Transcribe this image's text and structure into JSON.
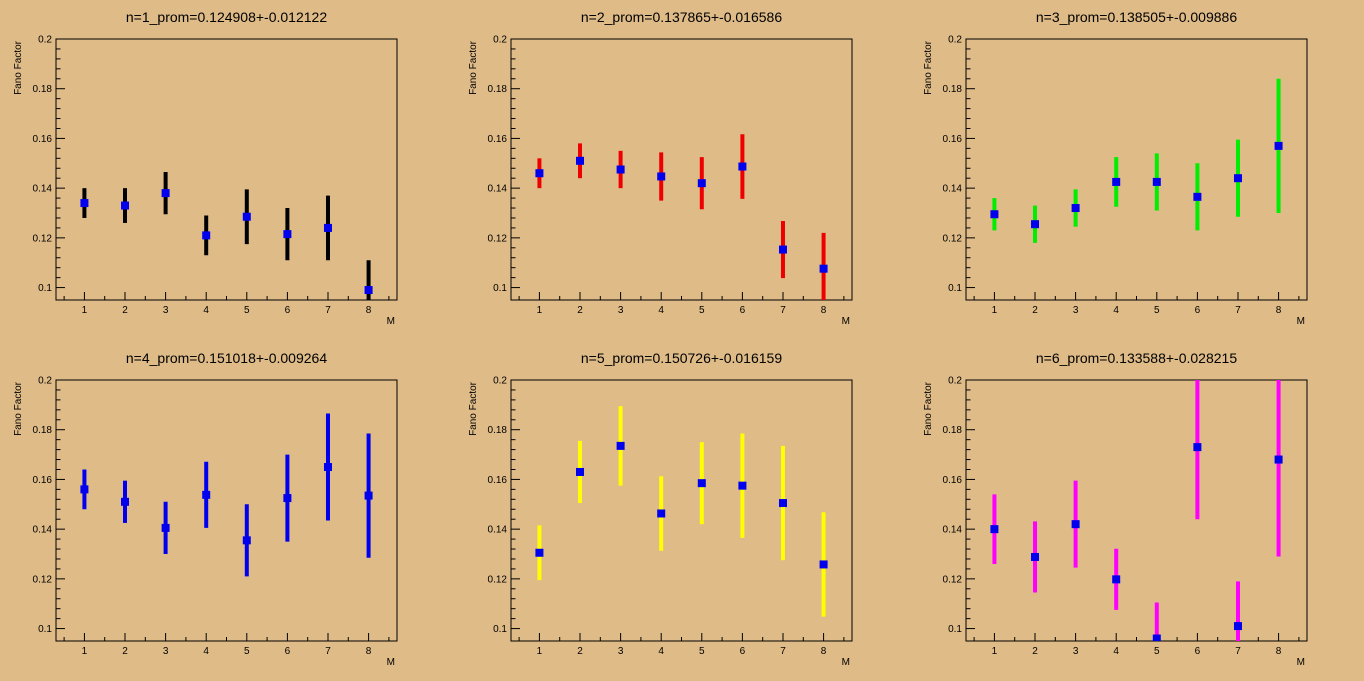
{
  "chart_data": [
    {
      "type": "scatter",
      "title": "n=1_prom=0.124908+-0.012122",
      "xlabel": "M",
      "ylabel": "Fano Factor",
      "xlim": [
        0.3,
        8.7
      ],
      "ylim": [
        0.095,
        0.2
      ],
      "x_ticks": [
        1,
        2,
        3,
        4,
        5,
        6,
        7,
        8
      ],
      "y_ticks": [
        0.1,
        0.12,
        0.14,
        0.16,
        0.18,
        0.2
      ],
      "error_color": "#000000",
      "marker_color": "#0000ee",
      "points": [
        {
          "x": 1,
          "y": 0.134,
          "err": 0.006
        },
        {
          "x": 2,
          "y": 0.133,
          "err": 0.007
        },
        {
          "x": 3,
          "y": 0.138,
          "err": 0.0085
        },
        {
          "x": 4,
          "y": 0.121,
          "err": 0.008
        },
        {
          "x": 5,
          "y": 0.1285,
          "err": 0.011
        },
        {
          "x": 6,
          "y": 0.1215,
          "err": 0.0105
        },
        {
          "x": 7,
          "y": 0.124,
          "err": 0.013
        },
        {
          "x": 8,
          "y": 0.099,
          "err": 0.012
        }
      ]
    },
    {
      "type": "scatter",
      "title": "n=2_prom=0.137865+-0.016586",
      "xlabel": "M",
      "ylabel": "Fano Factor",
      "xlim": [
        0.3,
        8.7
      ],
      "ylim": [
        0.095,
        0.2
      ],
      "x_ticks": [
        1,
        2,
        3,
        4,
        5,
        6,
        7,
        8
      ],
      "y_ticks": [
        0.1,
        0.12,
        0.14,
        0.16,
        0.18,
        0.2
      ],
      "error_color": "#ee0000",
      "marker_color": "#0000ee",
      "points": [
        {
          "x": 1,
          "y": 0.146,
          "err": 0.006
        },
        {
          "x": 2,
          "y": 0.151,
          "err": 0.007
        },
        {
          "x": 3,
          "y": 0.1475,
          "err": 0.0075
        },
        {
          "x": 4,
          "y": 0.1447,
          "err": 0.0097
        },
        {
          "x": 5,
          "y": 0.142,
          "err": 0.0105
        },
        {
          "x": 6,
          "y": 0.1487,
          "err": 0.013
        },
        {
          "x": 7,
          "y": 0.1153,
          "err": 0.0115
        },
        {
          "x": 8,
          "y": 0.1076,
          "err": 0.0144
        }
      ]
    },
    {
      "type": "scatter",
      "title": "n=3_prom=0.138505+-0.009886",
      "xlabel": "M",
      "ylabel": "Fano Factor",
      "xlim": [
        0.3,
        8.7
      ],
      "ylim": [
        0.095,
        0.2
      ],
      "x_ticks": [
        1,
        2,
        3,
        4,
        5,
        6,
        7,
        8
      ],
      "y_ticks": [
        0.1,
        0.12,
        0.14,
        0.16,
        0.18,
        0.2
      ],
      "error_color": "#00ee00",
      "marker_color": "#0000ee",
      "points": [
        {
          "x": 1,
          "y": 0.1295,
          "err": 0.0065
        },
        {
          "x": 2,
          "y": 0.1255,
          "err": 0.0075
        },
        {
          "x": 3,
          "y": 0.132,
          "err": 0.0075
        },
        {
          "x": 4,
          "y": 0.1425,
          "err": 0.01
        },
        {
          "x": 5,
          "y": 0.1425,
          "err": 0.0115
        },
        {
          "x": 6,
          "y": 0.1365,
          "err": 0.0135
        },
        {
          "x": 7,
          "y": 0.144,
          "err": 0.0155
        },
        {
          "x": 8,
          "y": 0.157,
          "err": 0.027
        }
      ]
    },
    {
      "type": "scatter",
      "title": "n=4_prom=0.151018+-0.009264",
      "xlabel": "M",
      "ylabel": "Fano Factor",
      "xlim": [
        0.3,
        8.7
      ],
      "ylim": [
        0.095,
        0.2
      ],
      "x_ticks": [
        1,
        2,
        3,
        4,
        5,
        6,
        7,
        8
      ],
      "y_ticks": [
        0.1,
        0.12,
        0.14,
        0.16,
        0.18,
        0.2
      ],
      "error_color": "#0000ee",
      "marker_color": "#0000ee",
      "points": [
        {
          "x": 1,
          "y": 0.156,
          "err": 0.008
        },
        {
          "x": 2,
          "y": 0.151,
          "err": 0.0085
        },
        {
          "x": 3,
          "y": 0.1405,
          "err": 0.0105
        },
        {
          "x": 4,
          "y": 0.1538,
          "err": 0.0133
        },
        {
          "x": 5,
          "y": 0.1355,
          "err": 0.0145
        },
        {
          "x": 6,
          "y": 0.1525,
          "err": 0.0175
        },
        {
          "x": 7,
          "y": 0.165,
          "err": 0.0215
        },
        {
          "x": 8,
          "y": 0.1535,
          "err": 0.025
        }
      ]
    },
    {
      "type": "scatter",
      "title": "n=5_prom=0.150726+-0.016159",
      "xlabel": "M",
      "ylabel": "Fano Factor",
      "xlim": [
        0.3,
        8.7
      ],
      "ylim": [
        0.095,
        0.2
      ],
      "x_ticks": [
        1,
        2,
        3,
        4,
        5,
        6,
        7,
        8
      ],
      "y_ticks": [
        0.1,
        0.12,
        0.14,
        0.16,
        0.18,
        0.2
      ],
      "error_color": "#ffff00",
      "marker_color": "#0000ee",
      "points": [
        {
          "x": 1,
          "y": 0.1305,
          "err": 0.011
        },
        {
          "x": 2,
          "y": 0.163,
          "err": 0.0125
        },
        {
          "x": 3,
          "y": 0.1735,
          "err": 0.016
        },
        {
          "x": 4,
          "y": 0.1463,
          "err": 0.015
        },
        {
          "x": 5,
          "y": 0.1585,
          "err": 0.0165
        },
        {
          "x": 6,
          "y": 0.1575,
          "err": 0.021
        },
        {
          "x": 7,
          "y": 0.1505,
          "err": 0.023
        },
        {
          "x": 8,
          "y": 0.1258,
          "err": 0.021
        }
      ]
    },
    {
      "type": "scatter",
      "title": "n=6_prom=0.133588+-0.028215",
      "xlabel": "M",
      "ylabel": "Fano Factor",
      "xlim": [
        0.3,
        8.7
      ],
      "ylim": [
        0.095,
        0.2
      ],
      "x_ticks": [
        1,
        2,
        3,
        4,
        5,
        6,
        7,
        8
      ],
      "y_ticks": [
        0.1,
        0.12,
        0.14,
        0.16,
        0.18,
        0.2
      ],
      "error_color": "#ff00ff",
      "marker_color": "#0000ee",
      "points": [
        {
          "x": 1,
          "y": 0.14,
          "err": 0.014
        },
        {
          "x": 2,
          "y": 0.1288,
          "err": 0.0143
        },
        {
          "x": 3,
          "y": 0.142,
          "err": 0.0175
        },
        {
          "x": 4,
          "y": 0.1198,
          "err": 0.0123
        },
        {
          "x": 5,
          "y": 0.096,
          "err": 0.0145
        },
        {
          "x": 6,
          "y": 0.173,
          "err": 0.029
        },
        {
          "x": 7,
          "y": 0.101,
          "err": 0.018
        },
        {
          "x": 8,
          "y": 0.168,
          "err": 0.039
        }
      ]
    }
  ]
}
